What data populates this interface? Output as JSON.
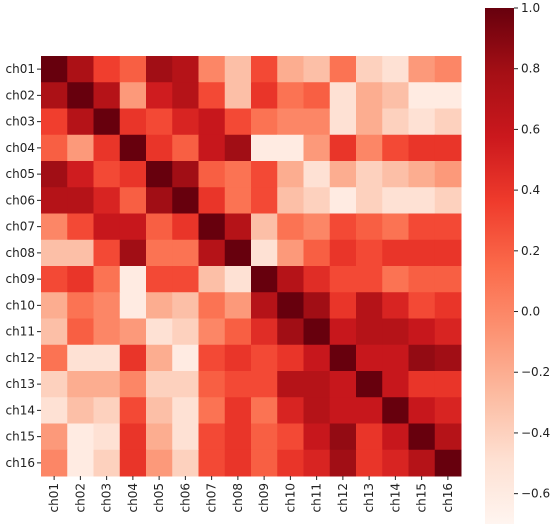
{
  "chart_data": {
    "type": "heatmap",
    "title": "",
    "xlabel": "",
    "ylabel": "",
    "row_labels": [
      "ch01",
      "ch02",
      "ch03",
      "ch04",
      "ch05",
      "ch06",
      "ch07",
      "ch08",
      "ch09",
      "ch10",
      "ch11",
      "ch12",
      "ch13",
      "ch14",
      "ch15",
      "ch16"
    ],
    "col_labels": [
      "ch01",
      "ch02",
      "ch03",
      "ch04",
      "ch05",
      "ch06",
      "ch07",
      "ch08",
      "ch09",
      "ch10",
      "ch11",
      "ch12",
      "ch13",
      "ch14",
      "ch15",
      "ch16"
    ],
    "values": [
      [
        1.0,
        0.75,
        0.35,
        0.2,
        0.8,
        0.7,
        0.0,
        -0.3,
        0.3,
        -0.2,
        -0.3,
        0.1,
        -0.4,
        -0.5,
        -0.1,
        0.0
      ],
      [
        0.75,
        1.0,
        0.7,
        -0.1,
        0.55,
        0.7,
        0.3,
        -0.3,
        0.4,
        0.1,
        0.2,
        -0.5,
        -0.2,
        -0.3,
        -0.6,
        -0.6
      ],
      [
        0.35,
        0.7,
        1.0,
        0.4,
        0.3,
        0.5,
        0.6,
        0.3,
        0.1,
        0.0,
        0.0,
        -0.5,
        -0.2,
        -0.4,
        -0.5,
        -0.4
      ],
      [
        0.2,
        -0.1,
        0.4,
        1.0,
        0.4,
        0.2,
        0.6,
        0.8,
        -0.6,
        -0.6,
        -0.1,
        0.4,
        0.0,
        0.3,
        0.4,
        0.4
      ],
      [
        0.8,
        0.55,
        0.3,
        0.4,
        1.0,
        0.8,
        0.2,
        0.1,
        0.3,
        -0.2,
        -0.5,
        -0.2,
        -0.4,
        -0.3,
        -0.2,
        -0.1
      ],
      [
        0.7,
        0.7,
        0.5,
        0.2,
        0.8,
        1.0,
        0.4,
        0.1,
        0.3,
        -0.3,
        -0.4,
        -0.6,
        -0.4,
        -0.5,
        -0.5,
        -0.4
      ],
      [
        0.0,
        0.3,
        0.6,
        0.6,
        0.2,
        0.4,
        1.0,
        0.7,
        -0.3,
        0.1,
        0.0,
        0.3,
        0.2,
        0.1,
        0.3,
        0.3
      ],
      [
        -0.3,
        -0.3,
        0.3,
        0.8,
        0.1,
        0.1,
        0.7,
        1.0,
        -0.5,
        -0.1,
        0.2,
        0.4,
        0.3,
        0.4,
        0.4,
        0.4
      ],
      [
        0.3,
        0.4,
        0.1,
        -0.6,
        0.3,
        0.3,
        -0.3,
        -0.5,
        1.0,
        0.7,
        0.45,
        0.3,
        0.3,
        0.1,
        0.2,
        0.2
      ],
      [
        -0.2,
        0.1,
        0.0,
        -0.6,
        -0.2,
        -0.3,
        0.1,
        -0.1,
        0.7,
        1.0,
        0.8,
        0.4,
        0.7,
        0.5,
        0.3,
        0.4
      ],
      [
        -0.3,
        0.2,
        0.0,
        -0.1,
        -0.5,
        -0.4,
        0.0,
        0.2,
        0.45,
        0.8,
        1.0,
        0.6,
        0.7,
        0.7,
        0.6,
        0.5
      ],
      [
        0.1,
        -0.5,
        -0.5,
        0.4,
        -0.2,
        -0.6,
        0.3,
        0.4,
        0.3,
        0.4,
        0.6,
        1.0,
        0.6,
        0.6,
        0.85,
        0.8
      ],
      [
        -0.4,
        -0.2,
        -0.2,
        0.0,
        -0.4,
        -0.4,
        0.2,
        0.3,
        0.3,
        0.7,
        0.7,
        0.6,
        1.0,
        0.6,
        0.4,
        0.4
      ],
      [
        -0.5,
        -0.3,
        -0.4,
        0.3,
        -0.3,
        -0.5,
        0.1,
        0.4,
        0.1,
        0.5,
        0.7,
        0.6,
        0.6,
        1.0,
        0.6,
        0.5
      ],
      [
        -0.1,
        -0.6,
        -0.5,
        0.4,
        -0.2,
        -0.5,
        0.3,
        0.4,
        0.2,
        0.3,
        0.6,
        0.85,
        0.4,
        0.6,
        1.0,
        0.7
      ],
      [
        0.0,
        -0.6,
        -0.4,
        0.4,
        -0.1,
        -0.4,
        0.3,
        0.4,
        0.2,
        0.4,
        0.5,
        0.8,
        0.4,
        0.5,
        0.7,
        1.0
      ]
    ],
    "colormap": "Reds",
    "color_range": [
      -0.7,
      1.0
    ],
    "colorbar_ticks": [
      1.0,
      0.8,
      0.6,
      0.4,
      0.2,
      0.0,
      -0.2,
      -0.4,
      -0.6
    ],
    "colorbar_labels": [
      "1.0",
      "0.8",
      "0.6",
      "0.4",
      "0.2",
      "0.0",
      "−0.2",
      "−0.4",
      "−0.6"
    ],
    "colorbar_position": "right",
    "grid": false
  }
}
